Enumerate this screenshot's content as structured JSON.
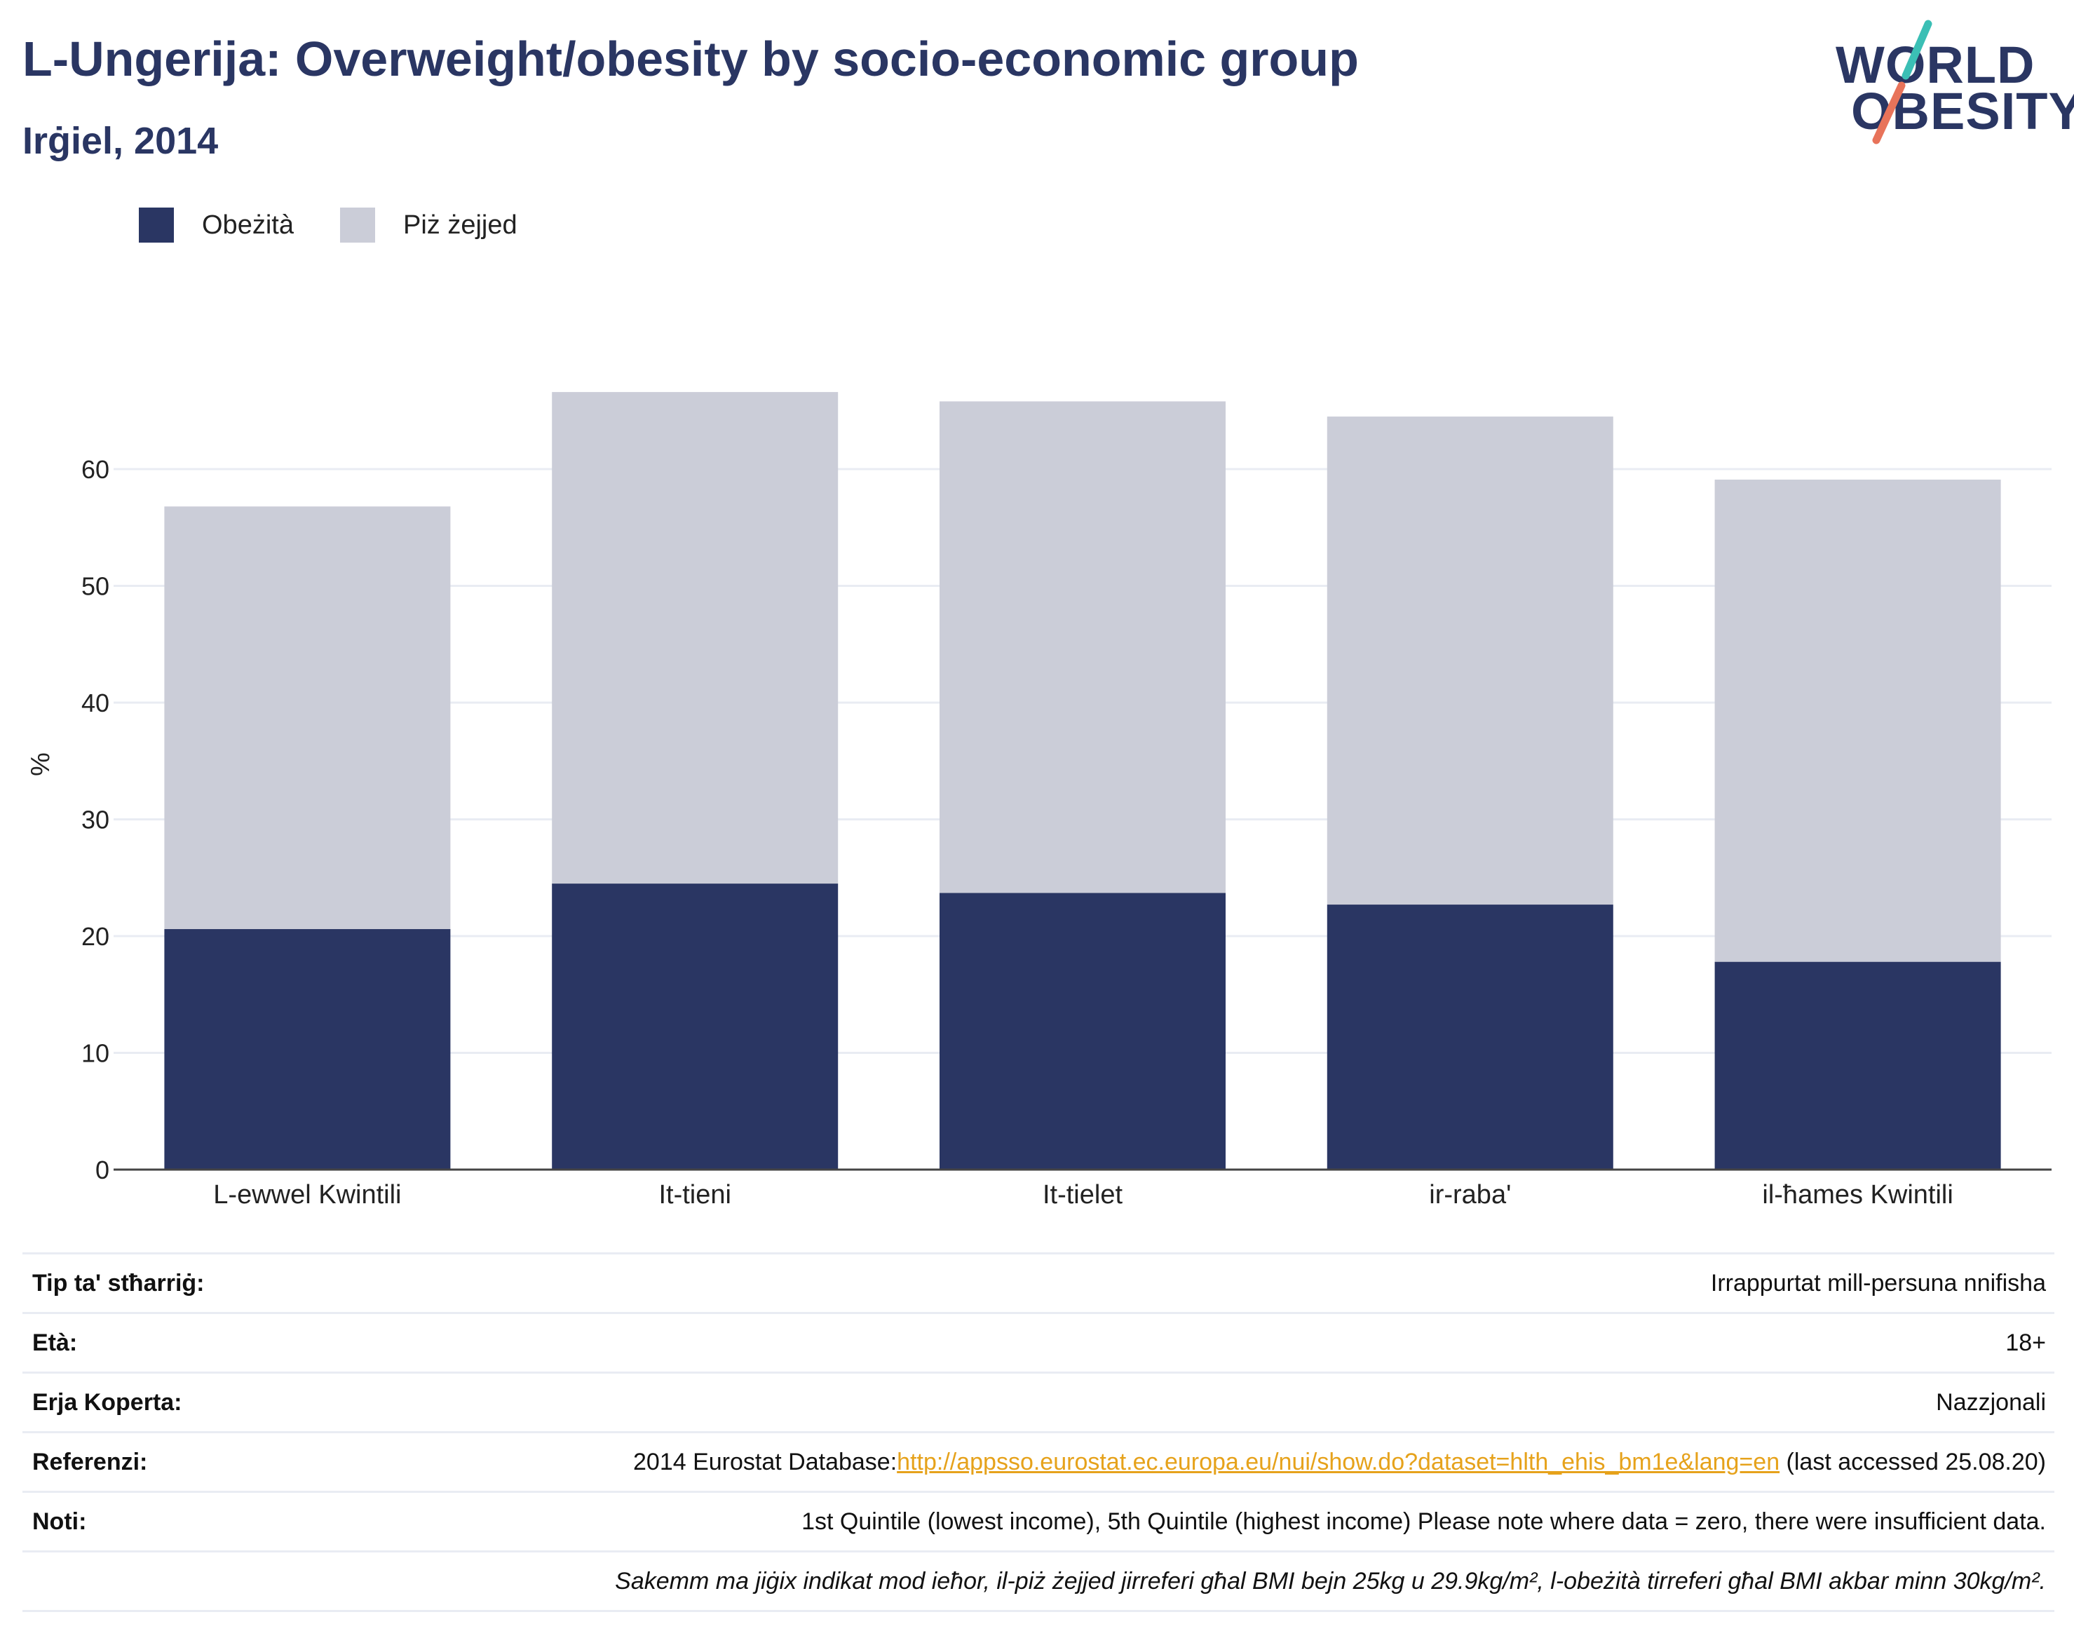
{
  "header": {
    "title": "L-Ungerija: Overweight/obesity by socio-economic group",
    "subtitle": "Irġiel, 2014"
  },
  "logo": {
    "line1": "WORLD",
    "line2": "OBESITY",
    "colors": {
      "text": "#2a3663",
      "slash_top": "#3bbfb5",
      "slash_bottom": "#e8735a"
    }
  },
  "legend": [
    {
      "label": "Obeżità",
      "color": "#2a3663"
    },
    {
      "label": "Piż żejjed",
      "color": "#cbcdd8"
    }
  ],
  "chart_data": {
    "type": "bar",
    "stacked": true,
    "categories": [
      "L-ewwel Kwintili",
      "It-tieni",
      "It-tielet",
      "ir-raba'",
      "il-ħames Kwintili"
    ],
    "series": [
      {
        "name": "Obeżità",
        "color": "#2a3663",
        "values": [
          20.6,
          24.5,
          23.7,
          22.7,
          17.8
        ]
      },
      {
        "name": "Piż żejjed",
        "color": "#cbcdd8",
        "values": [
          36.2,
          42.1,
          42.1,
          41.8,
          41.3
        ]
      }
    ],
    "totals": [
      56.8,
      66.6,
      65.8,
      64.5,
      59.1
    ],
    "ylabel": "%",
    "ylim": [
      0,
      70
    ],
    "yticks": [
      0,
      10,
      20,
      30,
      40,
      50,
      60
    ],
    "grid": true,
    "legend_position": "top-left"
  },
  "meta": {
    "survey_type_label": "Tip ta' stħarriġ:",
    "survey_type_value": "Irrappurtat mill-persuna nnifisha",
    "age_label": "Età:",
    "age_value": "18+",
    "area_label": "Erja Koperta:",
    "area_value": "Nazzjonali",
    "references_label": "Referenzi:",
    "references_prefix": "2014 Eurostat Database:",
    "references_link": "http://appsso.eurostat.ec.europa.eu/nui/show.do?dataset=hlth_ehis_bm1e&lang=en",
    "references_suffix": " (last accessed 25.08.20)",
    "notes_label": "Noti:",
    "notes_value": "1st Quintile (lowest income), 5th Quintile (highest income) Please note where data = zero, there were insufficient data.",
    "definition_note": "Sakemm ma jiġix indikat mod ieħor, il-piż żejjed jirreferi għal BMI bejn 25kg u 29.9kg/m², l-obeżità tirreferi għal BMI akbar minn 30kg/m²."
  }
}
